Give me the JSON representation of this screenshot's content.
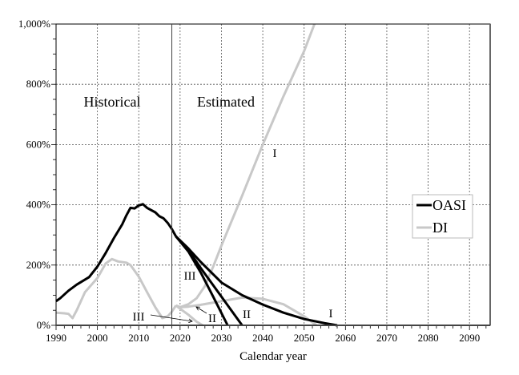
{
  "chart_data": {
    "type": "line",
    "title": "",
    "xlabel": "Calendar year",
    "ylabel": "",
    "xlim": [
      1990,
      2095
    ],
    "ylim": [
      0,
      1000
    ],
    "x_ticks": [
      1990,
      2000,
      2010,
      2020,
      2030,
      2040,
      2050,
      2060,
      2070,
      2080,
      2090
    ],
    "x_tick_labels": [
      "1990",
      "2000",
      "2010",
      "2020",
      "2030",
      "2040",
      "2050",
      "2060",
      "2070",
      "2080",
      "2090"
    ],
    "y_ticks": [
      0,
      200,
      400,
      600,
      800,
      1000
    ],
    "y_tick_labels": [
      "0%",
      "200%",
      "400%",
      "600%",
      "800%",
      "1,000%"
    ],
    "grid": true,
    "legend_placement": "right",
    "divider_year": 2018,
    "region_labels": [
      "Historical",
      "Estimated"
    ],
    "colors": {
      "OASI": "#000000",
      "DI": "#c8c8c8"
    },
    "legend": [
      "OASI",
      "DI"
    ],
    "series": [
      {
        "name": "OASI",
        "label": "",
        "x": [
          1990,
          1991,
          1993,
          1995,
          1998,
          2000,
          2002,
          2004,
          2006,
          2007,
          2008,
          2009,
          2010,
          2011,
          2012,
          2014,
          2015,
          2016,
          2017,
          2018,
          2019
        ],
        "values": [
          80,
          90,
          115,
          135,
          160,
          195,
          240,
          290,
          335,
          365,
          390,
          388,
          398,
          402,
          390,
          375,
          362,
          355,
          340,
          320,
          295
        ]
      },
      {
        "name": "OASI",
        "label": "I",
        "x": [
          2019,
          2022,
          2025,
          2030,
          2035,
          2040,
          2045,
          2050,
          2055,
          2058
        ],
        "values": [
          295,
          255,
          210,
          142,
          100,
          69,
          42,
          21,
          7,
          0
        ]
      },
      {
        "name": "OASI",
        "label": "II",
        "x": [
          2019,
          2022,
          2025,
          2030,
          2035
        ],
        "values": [
          295,
          250,
          190,
          95,
          0
        ]
      },
      {
        "name": "OASI",
        "label": "III",
        "x": [
          2019,
          2022,
          2025,
          2028,
          2031.5
        ],
        "values": [
          295,
          245,
          175,
          95,
          0
        ]
      },
      {
        "name": "DI",
        "label": "",
        "x": [
          1990,
          1992,
          1993,
          1994,
          1995,
          1997,
          2000,
          2002,
          2003.5,
          2005,
          2007,
          2008,
          2010,
          2012,
          2014,
          2015.7,
          2017,
          2018,
          2019
        ],
        "values": [
          42,
          40,
          38,
          24,
          50,
          110,
          157,
          205,
          220,
          212,
          208,
          200,
          162,
          110,
          60,
          24,
          30,
          45,
          66
        ]
      },
      {
        "name": "DI",
        "label": "I",
        "x": [
          2019,
          2020,
          2022,
          2024,
          2026,
          2028,
          2030,
          2035,
          2040,
          2045,
          2050,
          2052.5
        ],
        "values": [
          66,
          60,
          70,
          90,
          130,
          195,
          265,
          430,
          600,
          760,
          910,
          1000
        ]
      },
      {
        "name": "DI",
        "label": "II",
        "x": [
          2019,
          2020,
          2022,
          2025,
          2030,
          2035,
          2040,
          2045,
          2050,
          2053
        ],
        "values": [
          66,
          60,
          62,
          68,
          80,
          92,
          88,
          70,
          30,
          0
        ]
      },
      {
        "name": "DI",
        "label": "III",
        "x": [
          2019,
          2020,
          2022,
          2024,
          2025.5
        ],
        "values": [
          66,
          55,
          35,
          12,
          0
        ]
      }
    ],
    "annotations": [
      "I",
      "III",
      "III",
      "II",
      "II",
      "I"
    ]
  }
}
